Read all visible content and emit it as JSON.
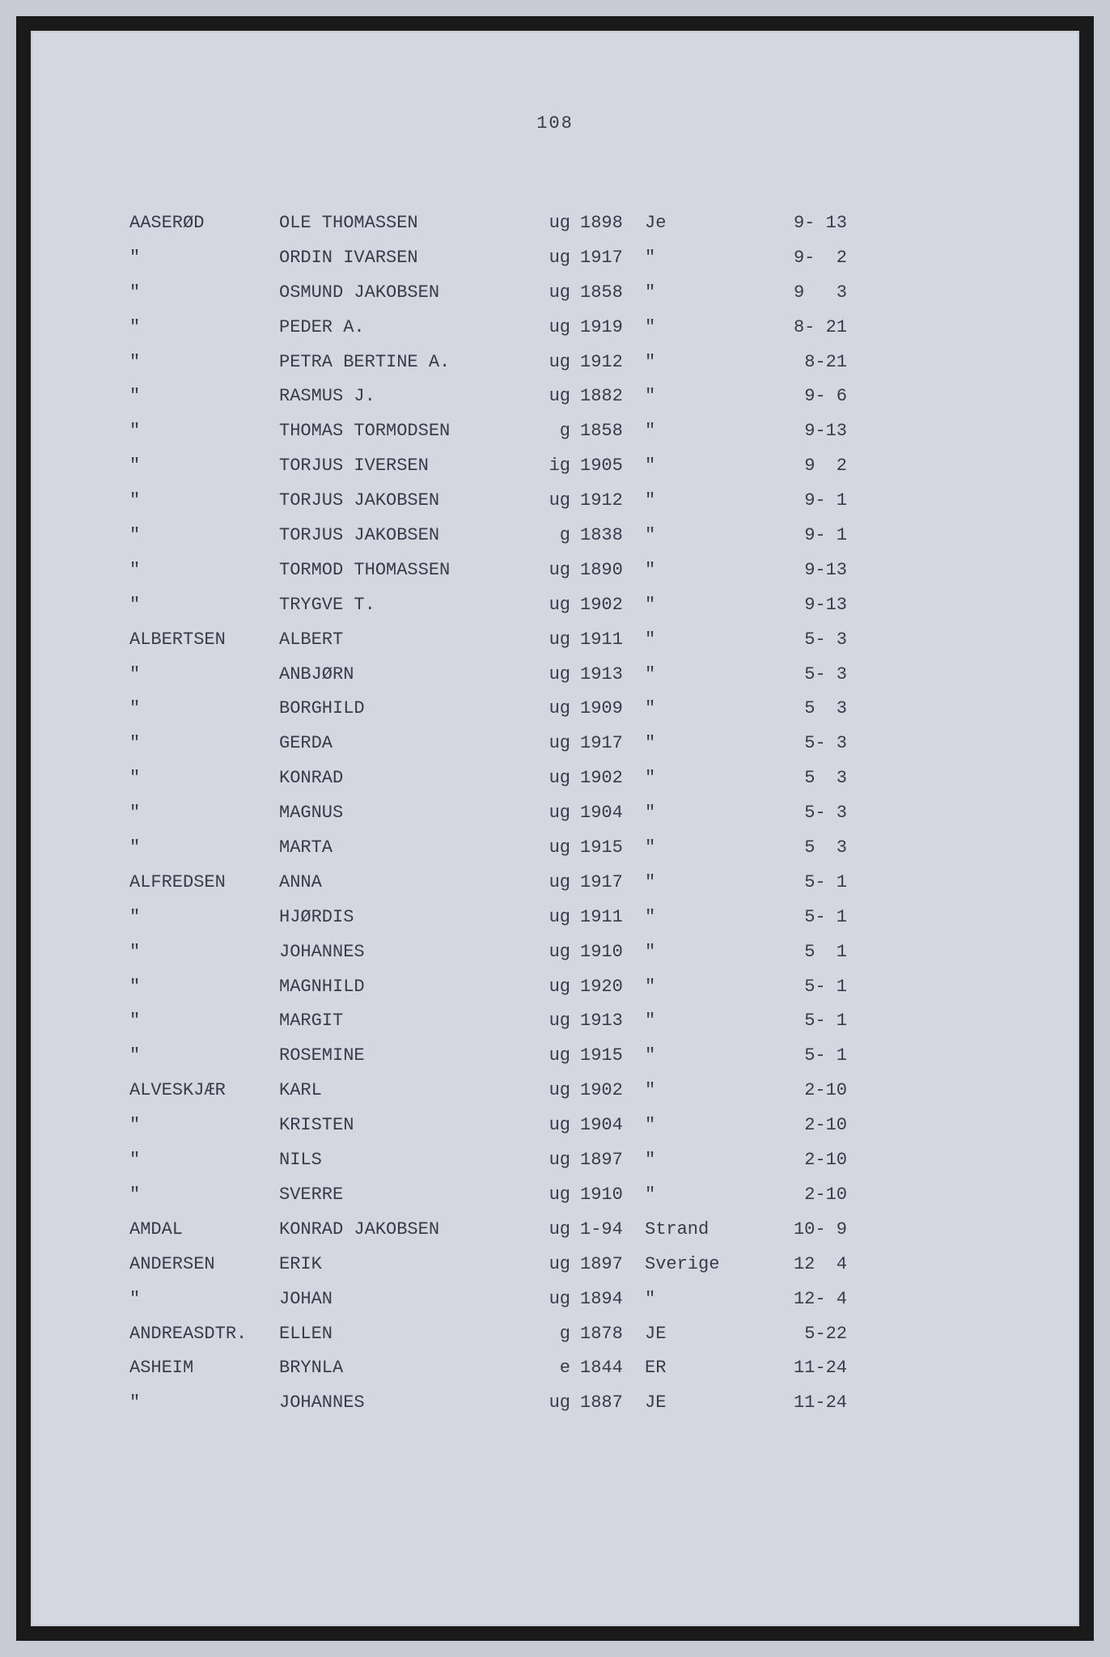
{
  "page_number": "108",
  "colors": {
    "outer_bg": "#c8cad4",
    "page_bg": "#d4d6e0",
    "text": "#3a3a4a",
    "frame": "#1a1a1a"
  },
  "typography": {
    "font_family": "Courier New",
    "font_size_pt": 16
  },
  "columns": [
    "surname",
    "given_name",
    "status",
    "year",
    "place",
    "reference"
  ],
  "rows": [
    {
      "surname": "AASERØD",
      "name": "OLE THOMASSEN",
      "status": "ug",
      "year": "1898",
      "place": "Je",
      "ref": "9- 13"
    },
    {
      "surname": "\"",
      "name": "ORDIN IVARSEN",
      "status": "ug",
      "year": "1917",
      "place": "\"",
      "ref": "9-  2"
    },
    {
      "surname": "\"",
      "name": "OSMUND JAKOBSEN",
      "status": "ug",
      "year": "1858",
      "place": "\"",
      "ref": "9   3"
    },
    {
      "surname": "\"",
      "name": "PEDER A.",
      "status": "ug",
      "year": "1919",
      "place": "\"",
      "ref": "8- 21"
    },
    {
      "surname": "\"",
      "name": "PETRA BERTINE A.",
      "status": "ug",
      "year": "1912",
      "place": "\"",
      "ref": "8-21"
    },
    {
      "surname": "\"",
      "name": "RASMUS J.",
      "status": "ug",
      "year": "1882",
      "place": "\"",
      "ref": "9- 6"
    },
    {
      "surname": "\"",
      "name": "THOMAS TORMODSEN",
      "status": "g",
      "year": "1858",
      "place": "\"",
      "ref": "9-13"
    },
    {
      "surname": "\"",
      "name": "TORJUS IVERSEN",
      "status": "ig",
      "year": "1905",
      "place": "\"",
      "ref": "9  2"
    },
    {
      "surname": "\"",
      "name": "TORJUS JAKOBSEN",
      "status": "ug",
      "year": "1912",
      "place": "\"",
      "ref": "9- 1"
    },
    {
      "surname": "\"",
      "name": "TORJUS JAKOBSEN",
      "status": "g",
      "year": "1838",
      "place": "\"",
      "ref": "9- 1"
    },
    {
      "surname": "\"",
      "name": "TORMOD THOMASSEN",
      "status": "ug",
      "year": "1890",
      "place": "\"",
      "ref": "9-13"
    },
    {
      "surname": "\"",
      "name": "TRYGVE T.",
      "status": "ug",
      "year": "1902",
      "place": "\"",
      "ref": "9-13"
    },
    {
      "surname": "ALBERTSEN",
      "name": "ALBERT",
      "status": "ug",
      "year": "1911",
      "place": "\"",
      "ref": "5- 3"
    },
    {
      "surname": "\"",
      "name": "ANBJØRN",
      "status": "ug",
      "year": "1913",
      "place": "\"",
      "ref": "5- 3"
    },
    {
      "surname": "\"",
      "name": "BORGHILD",
      "status": "ug",
      "year": "1909",
      "place": "\"",
      "ref": "5  3"
    },
    {
      "surname": "\"",
      "name": "GERDA",
      "status": "ug",
      "year": "1917",
      "place": "\"",
      "ref": "5- 3"
    },
    {
      "surname": "\"",
      "name": "KONRAD",
      "status": "ug",
      "year": "1902",
      "place": "\"",
      "ref": "5  3"
    },
    {
      "surname": "\"",
      "name": "MAGNUS",
      "status": "ug",
      "year": "1904",
      "place": "\"",
      "ref": "5- 3"
    },
    {
      "surname": "\"",
      "name": "MARTA",
      "status": "ug",
      "year": "1915",
      "place": "\"",
      "ref": "5  3"
    },
    {
      "surname": "ALFREDSEN",
      "name": "ANNA",
      "status": "ug",
      "year": "1917",
      "place": "\"",
      "ref": "5- 1"
    },
    {
      "surname": "\"",
      "name": "HJØRDIS",
      "status": "ug",
      "year": "1911",
      "place": "\"",
      "ref": "5- 1"
    },
    {
      "surname": "\"",
      "name": "JOHANNES",
      "status": "ug",
      "year": "1910",
      "place": "\"",
      "ref": "5  1"
    },
    {
      "surname": "\"",
      "name": "MAGNHILD",
      "status": "ug",
      "year": "1920",
      "place": "\"",
      "ref": "5- 1"
    },
    {
      "surname": "\"",
      "name": "MARGIT",
      "status": "ug",
      "year": "1913",
      "place": "\"",
      "ref": "5- 1"
    },
    {
      "surname": "\"",
      "name": "ROSEMINE",
      "status": "ug",
      "year": "1915",
      "place": "\"",
      "ref": "5- 1"
    },
    {
      "surname": "ALVESKJÆR",
      "name": "KARL",
      "status": "ug",
      "year": "1902",
      "place": "\"",
      "ref": "2-10"
    },
    {
      "surname": "\"",
      "name": "KRISTEN",
      "status": "ug",
      "year": "1904",
      "place": "\"",
      "ref": "2-10"
    },
    {
      "surname": "\"",
      "name": "NILS",
      "status": "ug",
      "year": "1897",
      "place": "\"",
      "ref": "2-10"
    },
    {
      "surname": "\"",
      "name": "SVERRE",
      "status": "ug",
      "year": "1910",
      "place": "\"",
      "ref": "2-10"
    },
    {
      "surname": "AMDAL",
      "name": "KONRAD JAKOBSEN",
      "status": "ug",
      "year": "1-94",
      "place": "Strand",
      "ref": "10- 9"
    },
    {
      "surname": "ANDERSEN",
      "name": "ERIK",
      "status": "ug",
      "year": "1897",
      "place": "Sverige",
      "ref": "12  4"
    },
    {
      "surname": "\"",
      "name": "JOHAN",
      "status": "ug",
      "year": "1894",
      "place": "\"",
      "ref": "12- 4"
    },
    {
      "surname": "ANDREASDTR.",
      "name": "ELLEN",
      "status": "g",
      "year": "1878",
      "place": "JE",
      "ref": "5-22"
    },
    {
      "surname": "ASHEIM",
      "name": "BRYNLA",
      "status": "e",
      "year": "1844",
      "place": "ER",
      "ref": "11-24"
    },
    {
      "surname": "\"",
      "name": "JOHANNES",
      "status": "ug",
      "year": "1887",
      "place": "JE",
      "ref": "11-24"
    }
  ]
}
